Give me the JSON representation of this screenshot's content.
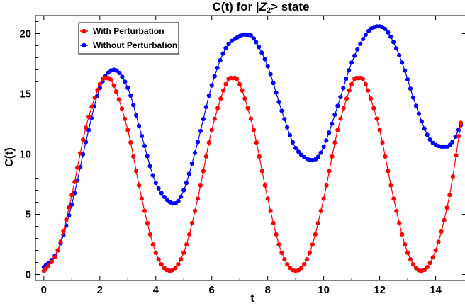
{
  "chart_data": {
    "type": "line",
    "title_prefix": "C(t) for |",
    "title_italic": "Z",
    "title_sub": "2",
    "title_suffix": "> state",
    "xlabel": "t",
    "ylabel": "C(t)",
    "xlim": [
      -0.3,
      15.1
    ],
    "ylim": [
      -0.5,
      21.5
    ],
    "xticks": [
      0,
      2,
      4,
      6,
      8,
      10,
      12,
      14
    ],
    "yticks": [
      0,
      5,
      10,
      15,
      20
    ],
    "grid": false,
    "legend_position": "top-left",
    "series": [
      {
        "name": "With Perturbation",
        "color": "#ff0000",
        "x": [
          0,
          0.5,
          1.0,
          1.5,
          2.0,
          2.25,
          2.5,
          3.0,
          3.5,
          4.0,
          4.5,
          5.0,
          5.5,
          6.0,
          6.5,
          6.75,
          7.0,
          7.5,
          8.0,
          8.5,
          9.0,
          9.5,
          10.0,
          10.5,
          11.0,
          11.25,
          11.5,
          12.0,
          12.5,
          13.0,
          13.5,
          14.0,
          14.5,
          14.9
        ],
        "y": [
          0.3,
          2.0,
          6.6,
          12.2,
          15.8,
          16.3,
          15.7,
          12.0,
          6.3,
          1.8,
          0.3,
          1.8,
          6.3,
          12.0,
          15.8,
          16.3,
          15.8,
          12.0,
          6.3,
          1.8,
          0.3,
          1.8,
          6.3,
          12.0,
          15.8,
          16.3,
          15.8,
          12.0,
          6.3,
          1.8,
          0.3,
          2.0,
          6.6,
          12.6
        ]
      },
      {
        "name": "Without Perturbation",
        "color": "#0000ff",
        "x": [
          0,
          0.5,
          1.0,
          1.5,
          2.0,
          2.5,
          3.0,
          3.5,
          4.0,
          4.6,
          5.0,
          5.5,
          6.0,
          6.5,
          7.0,
          7.25,
          7.5,
          8.0,
          8.5,
          9.0,
          9.6,
          10.0,
          10.5,
          11.0,
          11.5,
          11.9,
          12.3,
          12.8,
          13.3,
          13.8,
          14.3,
          14.6,
          14.9
        ],
        "y": [
          0.6,
          2.0,
          5.8,
          11.0,
          15.5,
          17.0,
          15.5,
          11.5,
          7.6,
          5.9,
          7.0,
          11.0,
          15.7,
          18.8,
          19.8,
          19.9,
          19.6,
          17.3,
          13.6,
          10.5,
          9.5,
          10.6,
          14.0,
          17.6,
          19.9,
          20.6,
          20.1,
          17.6,
          14.0,
          11.2,
          10.6,
          11.0,
          12.4
        ]
      }
    ]
  }
}
